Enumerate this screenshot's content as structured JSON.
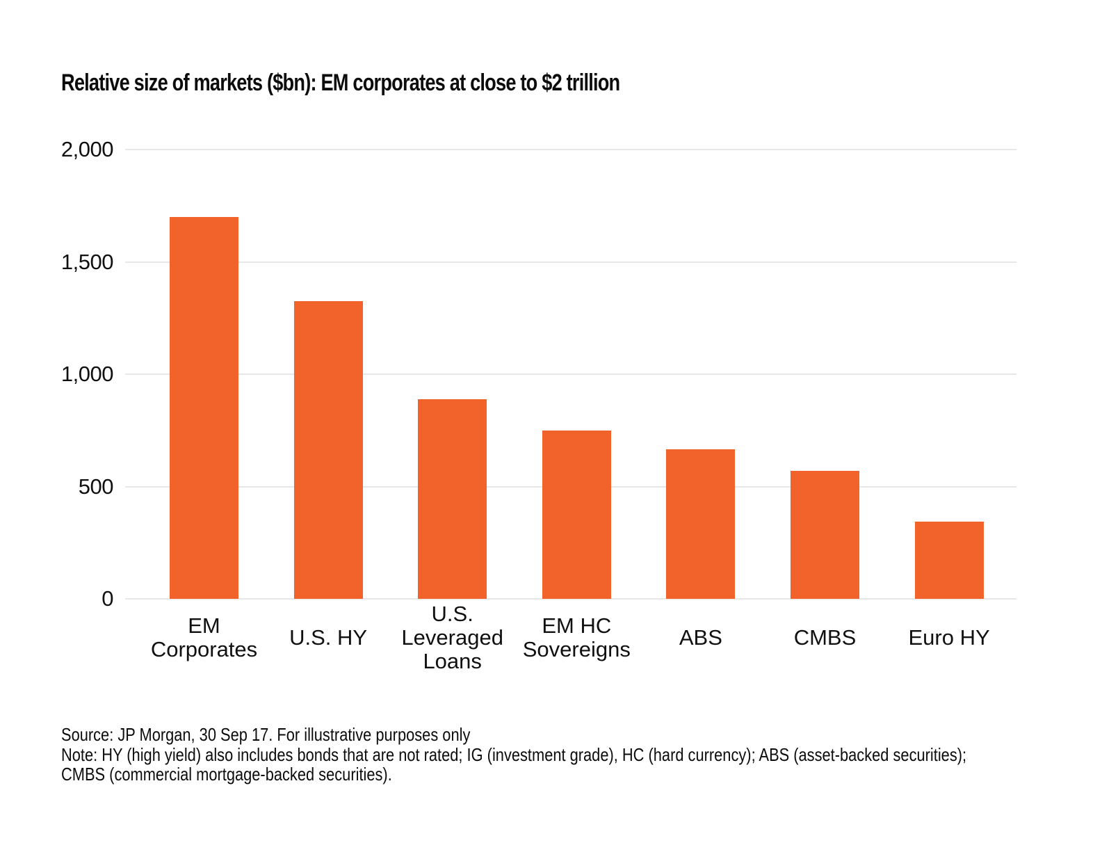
{
  "title": "Relative size of markets ($bn): EM corporates at close to $2 trillion",
  "chart_data": {
    "type": "bar",
    "title": "Relative size of markets ($bn): EM corporates at close to $2 trillion",
    "categories": [
      "EM\nCorporates",
      "U.S. HY",
      "U.S.\nLeveraged\nLoans",
      "EM HC\nSovereigns",
      "ABS",
      "CMBS",
      "Euro HY"
    ],
    "values": [
      1700,
      1325,
      890,
      750,
      665,
      570,
      345
    ],
    "xlabel": "",
    "ylabel": "",
    "ylim": [
      0,
      2000
    ],
    "yticks": [
      2000,
      1500,
      1000,
      500,
      0
    ],
    "ytick_labels": [
      "2,000",
      "1,500",
      "1,000",
      "500",
      "0"
    ],
    "grid": true,
    "legend": "none",
    "bar_color": "#f2622b",
    "gridline_color": "#e7e7e7"
  },
  "footer": {
    "source_line": "Source: JP Morgan, 30 Sep 17. For illustrative purposes only",
    "note_line": "Note: HY (high yield) also includes bonds that are not rated; IG (investment grade), HC (hard currency); ABS (asset-backed securities); CMBS (commercial mortgage-backed securities)."
  }
}
